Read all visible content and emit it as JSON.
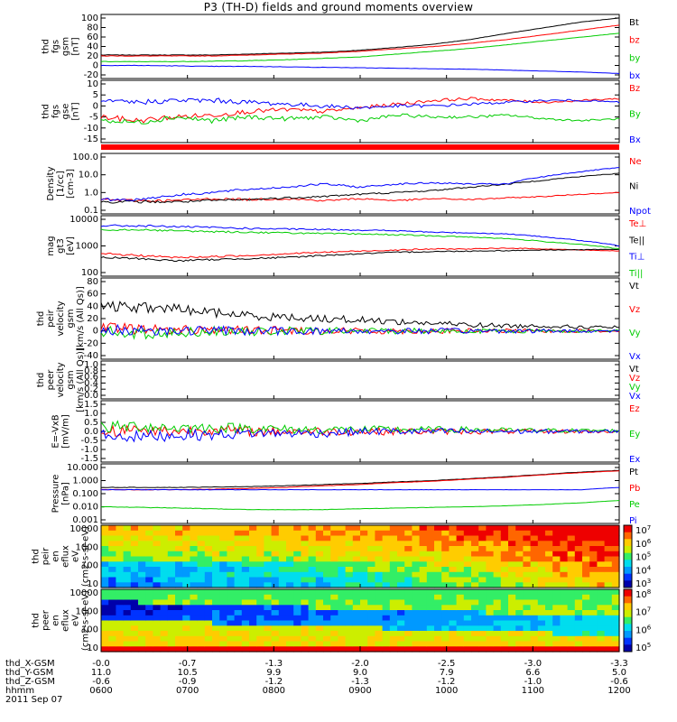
{
  "title": "P3 (TH-D) fields and ground moments overview",
  "date": "2011 Sep 07",
  "colors": {
    "black": "#000000",
    "red": "#ff0000",
    "green": "#00cc00",
    "blue": "#0000ff"
  },
  "chart_data": [
    {
      "type": "line",
      "id": "fgs_gsm",
      "ylabel": [
        "thd",
        "fgs",
        "gsm",
        "[nT]"
      ],
      "yticks": [
        "100",
        "80",
        "60",
        "40",
        "20",
        "0",
        "-20"
      ],
      "ylim": [
        -20,
        100
      ],
      "series": [
        {
          "name": "Bt",
          "color": "black",
          "values": [
            22,
            22,
            22,
            22,
            24,
            26,
            28,
            32,
            38,
            45,
            55,
            68,
            80,
            92,
            100
          ]
        },
        {
          "name": "bz",
          "color": "red",
          "values": [
            20,
            20,
            20,
            20,
            22,
            24,
            26,
            30,
            35,
            40,
            47,
            55,
            65,
            75,
            85
          ]
        },
        {
          "name": "by",
          "color": "green",
          "values": [
            8,
            8,
            8,
            9,
            10,
            12,
            15,
            18,
            24,
            30,
            36,
            44,
            52,
            60,
            68
          ]
        },
        {
          "name": "bx",
          "color": "blue",
          "values": [
            0,
            0,
            -1,
            -2,
            -2,
            -3,
            -4,
            -5,
            -6,
            -7,
            -8,
            -10,
            -12,
            -14,
            -17
          ]
        }
      ]
    },
    {
      "type": "line",
      "id": "fgs_gse",
      "ylabel": [
        "thd",
        "fgs",
        "gse",
        "[nT]"
      ],
      "yticks": [
        "10",
        "5",
        "0",
        "-5",
        "-10",
        "-15"
      ],
      "ylim": [
        -18,
        12
      ],
      "series": [
        {
          "name": "Bz",
          "color": "red",
          "values": [
            -6,
            -8,
            -6,
            -5,
            -3,
            -2,
            -3,
            -1,
            1,
            3,
            4,
            3,
            2,
            3,
            4
          ]
        },
        {
          "name": "By",
          "color": "green",
          "values": [
            -8,
            -9,
            -6,
            -8,
            -6,
            -7,
            -6,
            -8,
            -5,
            -6,
            -6,
            -5,
            -7,
            -8,
            -7
          ]
        },
        {
          "name": "Bx",
          "color": "blue",
          "values": [
            2,
            2,
            3,
            3,
            2,
            1,
            0,
            -1,
            0,
            0,
            1,
            2,
            3,
            3,
            2
          ]
        }
      ]
    },
    {
      "type": "line",
      "id": "density",
      "ylabel": [
        "Density",
        "[1/cc]",
        "[cm-3]"
      ],
      "yticks": [
        "100.0",
        "10.0",
        "1.0",
        "0.1"
      ],
      "ylim": [
        0.1,
        100
      ],
      "scale": "log",
      "series": [
        {
          "name": "Ne",
          "color": "red",
          "values": [
            0.4,
            0.35,
            0.35,
            0.45,
            0.4,
            0.45,
            0.35,
            0.45,
            0.35,
            0.45,
            0.4,
            0.5,
            0.6,
            0.8,
            1.0
          ]
        },
        {
          "name": "Ni",
          "color": "black",
          "values": [
            0.3,
            0.3,
            0.3,
            0.35,
            0.4,
            0.5,
            0.6,
            0.8,
            1,
            1.3,
            2,
            3,
            5,
            8,
            12
          ]
        },
        {
          "name": "Npot",
          "color": "blue",
          "values": [
            0.4,
            0.4,
            0.7,
            1,
            1.5,
            2,
            3,
            2,
            3,
            3.5,
            3,
            3,
            8,
            15,
            25
          ]
        }
      ]
    },
    {
      "type": "line",
      "id": "temps",
      "ylabel": [
        "mag",
        "gt3",
        "[eV]"
      ],
      "yticks": [
        "10000",
        "1000",
        "100"
      ],
      "ylim": [
        40,
        12000
      ],
      "scale": "log",
      "series": [
        {
          "name": "Te⊥",
          "color": "red",
          "values": [
            300,
            250,
            200,
            220,
            250,
            300,
            350,
            400,
            450,
            500,
            500,
            550,
            500,
            450,
            400
          ]
        },
        {
          "name": "Te||",
          "color": "black",
          "values": [
            200,
            180,
            140,
            160,
            180,
            200,
            250,
            300,
            350,
            380,
            400,
            420,
            450,
            460,
            480
          ]
        },
        {
          "name": "Ti⊥",
          "color": "blue",
          "values": [
            6000,
            6000,
            5500,
            5000,
            4500,
            4200,
            4000,
            3800,
            3500,
            3000,
            2800,
            2500,
            1800,
            1200,
            700
          ]
        },
        {
          "name": "Ti||",
          "color": "green",
          "values": [
            4000,
            4000,
            3500,
            3200,
            3000,
            2800,
            2600,
            2500,
            2300,
            2000,
            1800,
            1500,
            1100,
            800,
            500
          ]
        }
      ]
    },
    {
      "type": "line",
      "id": "peir_velocity",
      "ylabel": [
        "thd",
        "peir",
        "velocity",
        "gsm",
        "[km/s (All Qs)]"
      ],
      "yticks": [
        "80",
        "60",
        "40",
        "20",
        "0",
        "-20",
        "-40"
      ],
      "ylim": [
        -40,
        80
      ],
      "series": [
        {
          "name": "Vt",
          "color": "black",
          "values": [
            40,
            38,
            36,
            30,
            25,
            22,
            20,
            18,
            15,
            12,
            10,
            8,
            8,
            6,
            6
          ]
        },
        {
          "name": "Vz",
          "color": "red",
          "values": [
            5,
            3,
            2,
            2,
            1,
            1,
            0,
            0,
            0,
            0,
            0,
            0,
            0,
            0,
            0
          ]
        },
        {
          "name": "Vy",
          "color": "green",
          "values": [
            0,
            -5,
            -3,
            0,
            -2,
            0,
            0,
            0,
            0,
            0,
            0,
            0,
            0,
            0,
            0
          ]
        },
        {
          "name": "Vx",
          "color": "blue",
          "values": [
            0,
            2,
            0,
            1,
            0,
            0,
            0,
            0,
            0,
            0,
            0,
            0,
            0,
            0,
            0
          ]
        }
      ]
    },
    {
      "type": "line",
      "id": "peer_velocity",
      "ylabel": [
        "thd",
        "peer",
        "velocity",
        "gsm",
        "[km/s (All Qs)]"
      ],
      "yticks": [
        "1.0",
        "0.8",
        "0.6",
        "0.4",
        "0.2",
        "0.0"
      ],
      "ylim": [
        0,
        1
      ],
      "series": [
        {
          "name": "Vt",
          "color": "black",
          "values": []
        },
        {
          "name": "Vz",
          "color": "red",
          "values": []
        },
        {
          "name": "Vy",
          "color": "green",
          "values": []
        },
        {
          "name": "Vx",
          "color": "blue",
          "values": []
        }
      ]
    },
    {
      "type": "line",
      "id": "efield",
      "ylabel": [
        "E=-VxB",
        "[mV/m]"
      ],
      "yticks": [
        "1.5",
        "1.0",
        "0.5",
        "0.0",
        "-0.5",
        "-1.0",
        "-1.5"
      ],
      "ylim": [
        -1.5,
        1.5
      ],
      "series": [
        {
          "name": "Ez",
          "color": "red",
          "values": [
            0,
            0.1,
            0,
            0.1,
            0,
            0,
            0,
            0,
            0,
            0,
            0,
            0,
            0,
            0,
            0
          ]
        },
        {
          "name": "Ey",
          "color": "green",
          "values": [
            0.2,
            0.3,
            0.2,
            0.2,
            0.2,
            0.1,
            0.1,
            0.1,
            0.1,
            0.1,
            0.1,
            0.05,
            0.05,
            0.05,
            0.05
          ]
        },
        {
          "name": "Ex",
          "color": "blue",
          "values": [
            -0.2,
            -0.3,
            -0.2,
            -0.2,
            -0.1,
            -0.1,
            -0.1,
            0,
            0,
            0,
            0,
            0,
            0,
            0,
            0
          ]
        }
      ]
    },
    {
      "type": "line",
      "id": "pressure",
      "ylabel": [
        "Pressure",
        "[nPa]"
      ],
      "yticks": [
        "10.000",
        "1.000",
        "0.100",
        "0.010",
        "0.001"
      ],
      "ylim": [
        0.001,
        10
      ],
      "scale": "log",
      "series": [
        {
          "name": "Pt",
          "color": "black",
          "values": [
            0.3,
            0.3,
            0.3,
            0.32,
            0.35,
            0.4,
            0.5,
            0.6,
            0.8,
            1.0,
            1.4,
            2,
            3,
            4.5,
            6
          ]
        },
        {
          "name": "Pb",
          "color": "red",
          "values": [
            0.2,
            0.2,
            0.2,
            0.22,
            0.25,
            0.3,
            0.4,
            0.5,
            0.7,
            0.9,
            1.3,
            1.8,
            2.8,
            4,
            5.5
          ]
        },
        {
          "name": "Pe",
          "color": "green",
          "values": [
            0.01,
            0.009,
            0.008,
            0.007,
            0.006,
            0.006,
            0.006,
            0.007,
            0.008,
            0.009,
            0.01,
            0.012,
            0.015,
            0.02,
            0.03
          ]
        },
        {
          "name": "Pi",
          "color": "blue",
          "values": [
            0.2,
            0.2,
            0.2,
            0.2,
            0.2,
            0.2,
            0.2,
            0.2,
            0.2,
            0.2,
            0.2,
            0.2,
            0.2,
            0.2,
            0.3
          ]
        }
      ]
    },
    {
      "type": "heatmap",
      "id": "peir_spec",
      "ylabel": [
        "thd",
        "peir",
        "en",
        "eflux",
        "eV",
        "(cm2-s-sr-eV)"
      ],
      "yticks": [
        "10000",
        "1000",
        "100",
        "10"
      ],
      "colorbar_labels": [
        "10^7",
        "10^6",
        "10^5",
        "10^4",
        "10^3"
      ]
    },
    {
      "type": "heatmap",
      "id": "peer_spec",
      "ylabel": [
        "thd",
        "peer",
        "en",
        "eflux",
        "eV",
        "(cm2-s-sr-eV)"
      ],
      "yticks": [
        "10000",
        "1000",
        "100",
        "10"
      ],
      "colorbar_labels": [
        "10^8",
        "10^7",
        "10^6",
        "10^5"
      ]
    }
  ],
  "ephemeris": {
    "rows": [
      {
        "label": "thd_X-GSM",
        "values": [
          "-0.0",
          "-0.7",
          "-1.3",
          "-2.0",
          "-2.5",
          "-3.0",
          "-3.3"
        ]
      },
      {
        "label": "thd_Y-GSM",
        "values": [
          "11.0",
          "10.5",
          "9.9",
          "9.0",
          "7.9",
          "6.6",
          "5.0"
        ]
      },
      {
        "label": "thd_Z-GSM",
        "values": [
          "-0.6",
          "-0.9",
          "-1.2",
          "-1.3",
          "-1.2",
          "-1.0",
          "-0.6"
        ]
      },
      {
        "label": "hhmm",
        "values": [
          "0600",
          "0700",
          "0800",
          "0900",
          "1000",
          "1100",
          "1200"
        ]
      }
    ]
  }
}
